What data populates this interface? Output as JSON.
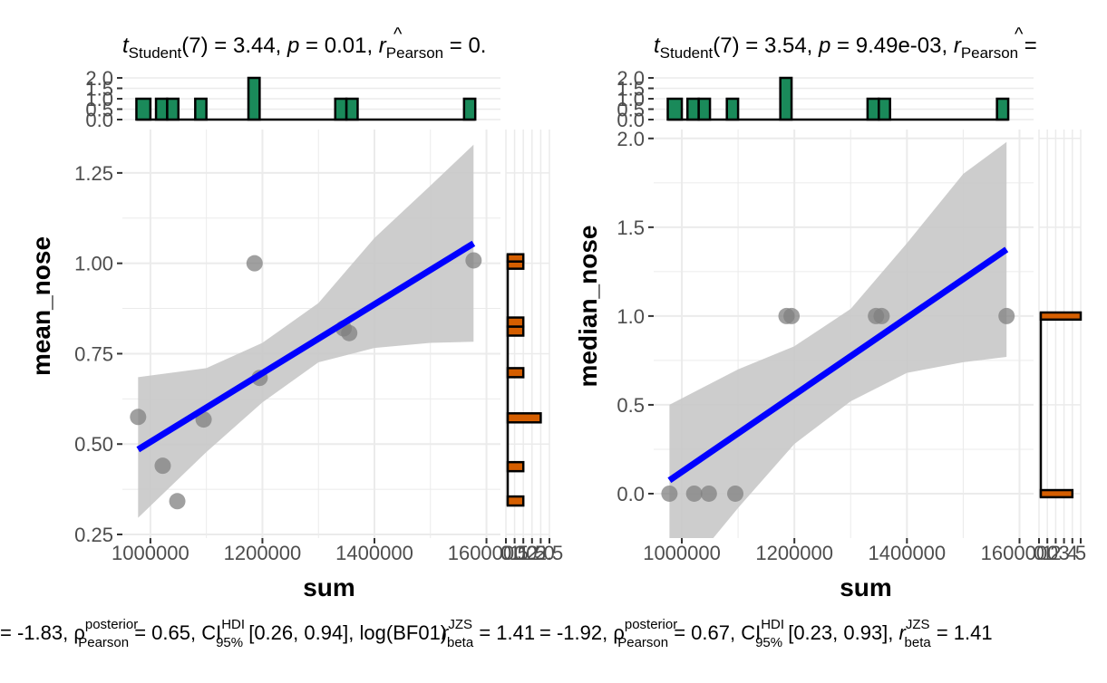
{
  "chart_data": [
    {
      "type": "scatter",
      "title": {
        "t_sym": "t",
        "t_sub": "Student",
        "df_text": "(7) = 3.44, ",
        "p_sym": "p",
        "p_text": " = 0.01, ",
        "r_sym": "r",
        "r_sub": "Pearson",
        "r_text": " = 0."
      },
      "xlabel": "sum",
      "ylabel": "mean_nose",
      "xlim": [
        950000,
        1625000
      ],
      "ylim": [
        0.24,
        1.37
      ],
      "x_ticks": [
        1000000,
        1200000,
        1400000,
        1600000
      ],
      "x_tick_labels": [
        "1000000",
        "1200000",
        "1400000",
        "1600000"
      ],
      "y_ticks": [
        0.25,
        0.5,
        0.75,
        1.0,
        1.25
      ],
      "y_tick_labels": [
        "0.25",
        "0.50",
        "0.75",
        "1.00",
        "1.25"
      ],
      "points": [
        {
          "x": 978000,
          "y": 0.575
        },
        {
          "x": 1022000,
          "y": 0.44
        },
        {
          "x": 1048000,
          "y": 0.342
        },
        {
          "x": 1095000,
          "y": 0.568
        },
        {
          "x": 1186000,
          "y": 1.0
        },
        {
          "x": 1195000,
          "y": 0.683
        },
        {
          "x": 1345000,
          "y": 0.82
        },
        {
          "x": 1355000,
          "y": 0.807
        },
        {
          "x": 1577000,
          "y": 1.008
        }
      ],
      "fit_line": {
        "x": [
          978000,
          1577000
        ],
        "y": [
          0.485,
          1.055
        ]
      },
      "ci_band": {
        "x": [
          978000,
          1100000,
          1200000,
          1300000,
          1400000,
          1500000,
          1577000
        ],
        "lower": [
          0.296,
          0.478,
          0.615,
          0.726,
          0.766,
          0.78,
          0.783
        ],
        "upper": [
          0.685,
          0.71,
          0.78,
          0.89,
          1.07,
          1.215,
          1.328
        ]
      },
      "top_histogram": {
        "ticks": [
          0.0,
          0.5,
          1.0,
          1.5,
          2.0
        ],
        "tick_labels": [
          "0.0",
          "0.5",
          "1.0",
          "1.5",
          "2.0"
        ],
        "bins": [
          {
            "x0": 975000,
            "x1": 1000000,
            "count": 1
          },
          {
            "x0": 1010000,
            "x1": 1030000,
            "count": 1
          },
          {
            "x0": 1030000,
            "x1": 1050000,
            "count": 1
          },
          {
            "x0": 1080000,
            "x1": 1100000,
            "count": 1
          },
          {
            "x0": 1175000,
            "x1": 1195000,
            "count": 2
          },
          {
            "x0": 1330000,
            "x1": 1350000,
            "count": 1
          },
          {
            "x0": 1350000,
            "x1": 1370000,
            "count": 1
          },
          {
            "x0": 1560000,
            "x1": 1580000,
            "count": 1
          }
        ]
      },
      "right_histogram": {
        "ticks": [
          0,
          0.5,
          1.0,
          1.5,
          2.0,
          2.5
        ],
        "tick_labels": [
          "0",
          "0.5",
          "1.0",
          "1.5",
          "2.0",
          "2.5"
        ],
        "bins": [
          {
            "y0": 0.33,
            "y1": 0.355,
            "count": 1
          },
          {
            "y0": 0.425,
            "y1": 0.45,
            "count": 1
          },
          {
            "y0": 0.56,
            "y1": 0.585,
            "count": 2
          },
          {
            "y0": 0.685,
            "y1": 0.71,
            "count": 1
          },
          {
            "y0": 0.8,
            "y1": 0.825,
            "count": 1
          },
          {
            "y0": 0.825,
            "y1": 0.85,
            "count": 1
          },
          {
            "y0": 0.985,
            "y1": 1.005,
            "count": 1
          },
          {
            "y0": 1.005,
            "y1": 1.025,
            "count": 1
          }
        ]
      },
      "caption": {
        "lead": "= -1.83, ",
        "rho": "ρ",
        "rho_sup": "posterior",
        "rho_sub": "Pearson",
        "rho_text": " = 0.65, CI",
        "ci_sup": "HDI",
        "ci_sub": "95%",
        "ci_text": " [0.26, 0.94], ",
        "tail": "log(BF01)"
      }
    },
    {
      "type": "scatter",
      "title": {
        "t_sym": "t",
        "t_sub": "Student",
        "df_text": "(7) = 3.54, ",
        "p_sym": "p",
        "p_text": " = 9.49e-03, ",
        "r_sym": "r",
        "r_sub": "Pearson",
        "r_text": " ="
      },
      "xlabel": "sum",
      "ylabel": "median_nose",
      "xlim": [
        950000,
        1625000
      ],
      "ylim": [
        -0.25,
        2.05
      ],
      "x_ticks": [
        1000000,
        1200000,
        1400000,
        1600000
      ],
      "x_tick_labels": [
        "1000000",
        "1200000",
        "1400000",
        "1600000"
      ],
      "y_ticks": [
        0.0,
        0.5,
        1.0,
        1.5,
        2.0
      ],
      "y_tick_labels": [
        "0.0",
        "0.5",
        "1.0",
        "1.5",
        "2.0"
      ],
      "points": [
        {
          "x": 978000,
          "y": 0.0
        },
        {
          "x": 1022000,
          "y": 0.0
        },
        {
          "x": 1048000,
          "y": 0.0
        },
        {
          "x": 1095000,
          "y": 0.0
        },
        {
          "x": 1186000,
          "y": 1.0
        },
        {
          "x": 1195000,
          "y": 1.0
        },
        {
          "x": 1345000,
          "y": 1.0
        },
        {
          "x": 1355000,
          "y": 1.0
        },
        {
          "x": 1577000,
          "y": 1.0
        }
      ],
      "fit_line": {
        "x": [
          978000,
          1577000
        ],
        "y": [
          0.075,
          1.375
        ]
      },
      "ci_band": {
        "x": [
          978000,
          1100000,
          1200000,
          1300000,
          1400000,
          1500000,
          1577000
        ],
        "lower": [
          -0.55,
          -0.08,
          0.28,
          0.52,
          0.68,
          0.74,
          0.77
        ],
        "upper": [
          0.5,
          0.7,
          0.83,
          1.04,
          1.41,
          1.8,
          1.98
        ]
      },
      "top_histogram": {
        "ticks": [
          0.0,
          0.5,
          1.0,
          1.5,
          2.0
        ],
        "tick_labels": [
          "0.0",
          "0.5",
          "1.0",
          "1.5",
          "2.0"
        ],
        "bins": [
          {
            "x0": 975000,
            "x1": 1000000,
            "count": 1
          },
          {
            "x0": 1010000,
            "x1": 1030000,
            "count": 1
          },
          {
            "x0": 1030000,
            "x1": 1050000,
            "count": 1
          },
          {
            "x0": 1080000,
            "x1": 1100000,
            "count": 1
          },
          {
            "x0": 1175000,
            "x1": 1195000,
            "count": 2
          },
          {
            "x0": 1330000,
            "x1": 1350000,
            "count": 1
          },
          {
            "x0": 1350000,
            "x1": 1370000,
            "count": 1
          },
          {
            "x0": 1560000,
            "x1": 1580000,
            "count": 1
          }
        ]
      },
      "right_histogram": {
        "ticks": [
          0,
          1,
          2,
          3,
          4,
          5
        ],
        "tick_labels": [
          "0",
          "1",
          "2",
          "3",
          "4",
          "5"
        ],
        "bins": [
          {
            "y0": -0.02,
            "y1": 0.02,
            "count": 4
          },
          {
            "y0": 0.98,
            "y1": 1.02,
            "count": 5
          }
        ]
      },
      "caption": {
        "lead": "= -1.92, ",
        "rho": "ρ",
        "rho_sup": "posterior",
        "rho_sub": "Pearson",
        "rho_text": " = 0.67, CI",
        "ci_sup": "HDI",
        "ci_sub": "95%",
        "ci_text": " [0.23, 0.93], ",
        "r_sym": "r",
        "r_sup": "JZS",
        "r_sub": "beta",
        "r_text": " = 1.41"
      }
    }
  ],
  "overlap_fragments": {
    "r_sym": "r",
    "sup": "JZS",
    "sub": "beta",
    "text": " = 1.41"
  },
  "colors": {
    "top_hist_fill": "#1a8a5a",
    "right_hist_fill": "#d55e00",
    "fit_line": "#0000ff",
    "ci_band": "#c8c8c8",
    "points": "#808080",
    "grid": "#ebebeb",
    "axis_text": "#4d4d4d",
    "text": "#000000"
  }
}
